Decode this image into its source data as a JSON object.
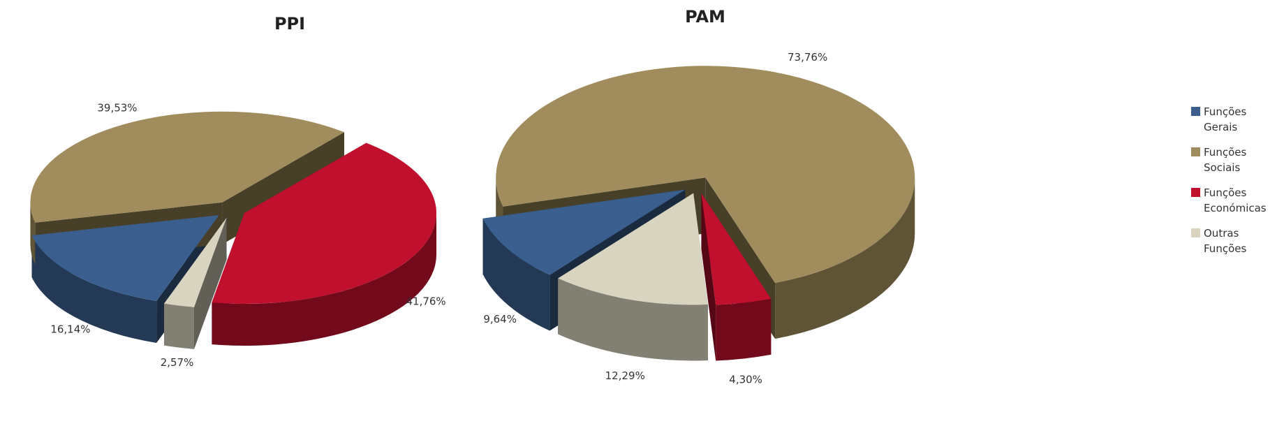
{
  "chart_data": [
    {
      "type": "pie",
      "title": "PPI",
      "categories": [
        "Funções Gerais",
        "Funções Sociais",
        "Funções Económicas",
        "Outras Funções"
      ],
      "values": [
        16.14,
        39.53,
        41.76,
        2.57
      ],
      "value_labels": [
        "16,14%",
        "39,53%",
        "41,76%",
        "2,57%"
      ],
      "colors": [
        "#3a5f8f",
        "#a08c5c",
        "#c0102e",
        "#d8d4c0"
      ]
    },
    {
      "type": "pie",
      "title": "PAM",
      "categories": [
        "Funções Sociais",
        "Funções Económicas",
        "Outras Funções",
        "Funções Gerais"
      ],
      "values": [
        73.76,
        4.3,
        12.29,
        9.64
      ],
      "value_labels": [
        "73,76%",
        "4,30%",
        "12,29%",
        "9,64%"
      ],
      "colors": [
        "#a08c5c",
        "#c0102e",
        "#d8d4c0",
        "#3a5f8f"
      ]
    }
  ]
}
